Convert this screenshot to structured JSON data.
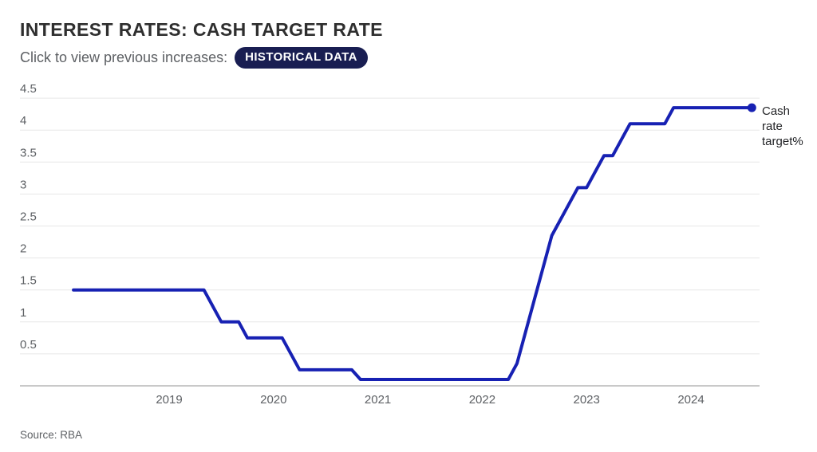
{
  "page": {
    "title": "INTEREST RATES: CASH TARGET RATE",
    "subtitle": "Click to view previous increases:",
    "button_label": "HISTORICAL DATA",
    "source": "Source: RBA"
  },
  "colors": {
    "line": "#1721b3",
    "dot": "#1721b3",
    "button_bg": "#191e52",
    "title_text": "#2f2f2f",
    "muted_text": "#5d6064",
    "gridline": "#e7e7e7",
    "axis_line": "#a9a9a9"
  },
  "chart_data": {
    "type": "line",
    "title": "INTEREST RATES: CASH TARGET RATE",
    "xlabel": "",
    "ylabel": "",
    "unit": "%",
    "grid": true,
    "ylim": [
      0,
      4.5
    ],
    "y_tick_labels": [
      "0.5",
      "1",
      "1.5",
      "2",
      "2.5",
      "3",
      "3.5",
      "4",
      "4.5"
    ],
    "x_tick_labels": [
      "2019",
      "2020",
      "2021",
      "2022",
      "2023",
      "2024"
    ],
    "annotation": "Cash rate target%",
    "series": [
      {
        "name": "Cash rate target%",
        "frequency": "monthly",
        "start_month": "2018-02",
        "end_month": "2024-08",
        "values": [
          1.5,
          1.5,
          1.5,
          1.5,
          1.5,
          1.5,
          1.5,
          1.5,
          1.5,
          1.5,
          1.5,
          1.5,
          1.5,
          1.5,
          1.5,
          1.5,
          1.25,
          1.0,
          1.0,
          1.0,
          0.75,
          0.75,
          0.75,
          0.75,
          0.75,
          0.5,
          0.25,
          0.25,
          0.25,
          0.25,
          0.25,
          0.25,
          0.25,
          0.1,
          0.1,
          0.1,
          0.1,
          0.1,
          0.1,
          0.1,
          0.1,
          0.1,
          0.1,
          0.1,
          0.1,
          0.1,
          0.1,
          0.1,
          0.1,
          0.1,
          0.1,
          0.35,
          0.85,
          1.35,
          1.85,
          2.35,
          2.6,
          2.85,
          3.1,
          3.1,
          3.35,
          3.6,
          3.6,
          3.85,
          4.1,
          4.1,
          4.1,
          4.1,
          4.1,
          4.35,
          4.35,
          4.35,
          4.35,
          4.35,
          4.35,
          4.35,
          4.35,
          4.35,
          4.35
        ]
      }
    ]
  }
}
